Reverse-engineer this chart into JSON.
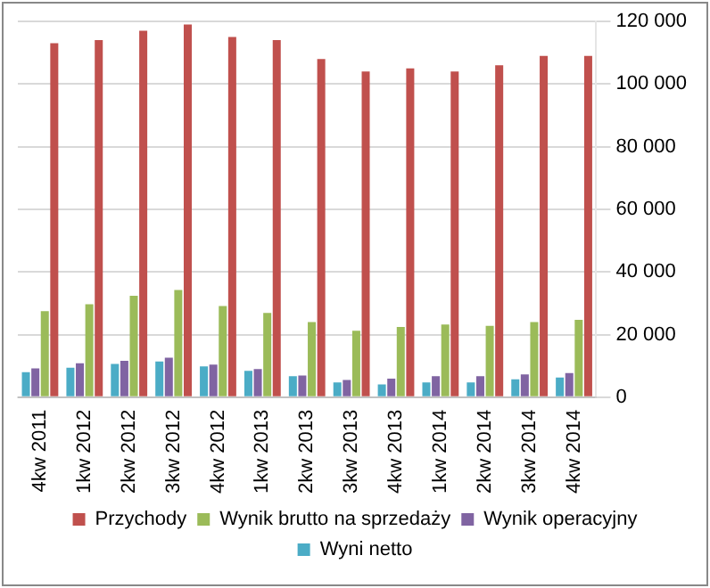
{
  "chart_data": {
    "type": "bar",
    "categories": [
      "4kw 2011",
      "1kw 2012",
      "2kw 2012",
      "3kw 2012",
      "4kw 2012",
      "1kw 2013",
      "2kw 2013",
      "3kw 2013",
      "4kw 2013",
      "1kw 2014",
      "2kw 2014",
      "3kw 2014",
      "4kw 2014"
    ],
    "series": [
      {
        "name": "Przychody",
        "color": "#c0504d",
        "values": [
          113000,
          114000,
          117000,
          119000,
          115000,
          114000,
          108000,
          104000,
          105000,
          104000,
          106000,
          109000,
          109000
        ]
      },
      {
        "name": "Wynik brutto na sprzedaży",
        "color": "#9bbb59",
        "values": [
          27500,
          29700,
          32400,
          34200,
          29100,
          26900,
          24000,
          21200,
          22400,
          23200,
          22800,
          24000,
          24700
        ]
      },
      {
        "name": "Wynik operacyjny",
        "color": "#8064a2",
        "values": [
          9200,
          10800,
          11600,
          12600,
          10400,
          9000,
          6900,
          5500,
          5900,
          6700,
          6700,
          7300,
          7700
        ]
      },
      {
        "name": "Wyni netto",
        "color": "#4bacc6",
        "values": [
          8000,
          9400,
          10600,
          11400,
          9800,
          8400,
          6700,
          4700,
          4100,
          4700,
          4700,
          5700,
          6300
        ]
      }
    ],
    "ylim": [
      0,
      120000
    ],
    "yticks": [
      0,
      {
        "value": 20000,
        "label": "20 000"
      },
      {
        "value": 40000,
        "label": "40 000"
      },
      {
        "value": 60000,
        "label": "60 000"
      },
      {
        "value": 80000,
        "label": "80 000"
      },
      {
        "value": 100000,
        "label": "100 000"
      },
      {
        "value": 120000,
        "label": "120 000"
      }
    ],
    "grid": "y",
    "legend": "bottom"
  }
}
